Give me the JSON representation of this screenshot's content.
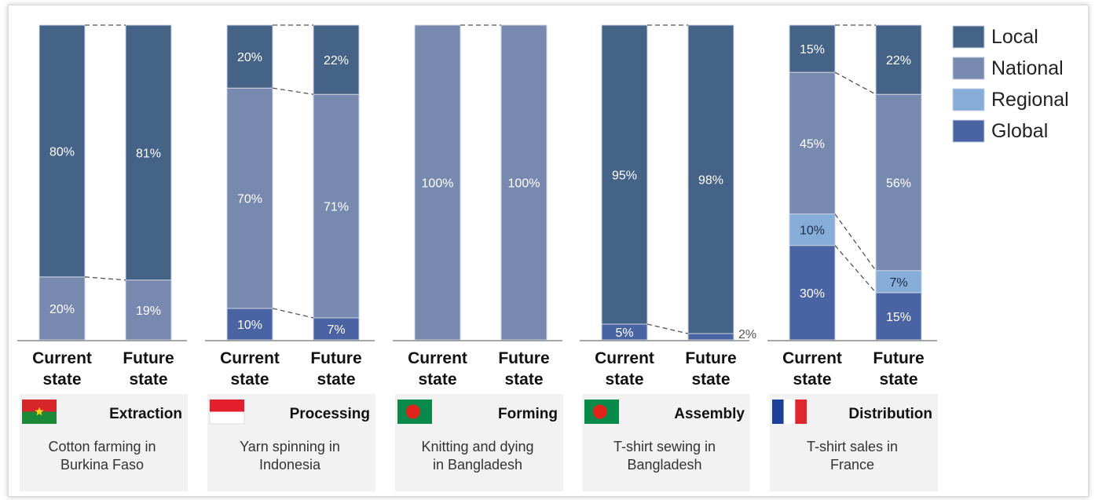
{
  "chart_data": {
    "type": "bar",
    "stacked": true,
    "series_names": [
      "Local",
      "National",
      "Regional",
      "Global"
    ],
    "colors": {
      "Local": "#456287",
      "National": "#7889b0",
      "Regional": "#86acd8",
      "Global": "#4a63a3"
    },
    "legend": {
      "position": "top-right",
      "labels": [
        "Local",
        "National",
        "Regional",
        "Global"
      ]
    },
    "ylim": [
      0,
      100
    ],
    "bar_labels": [
      "Current\nstate",
      "Future\nstate"
    ],
    "panels": [
      {
        "stage": "Extraction",
        "description": "Cotton farming in Burkina Faso",
        "flag": "burkina-faso-flag",
        "current": {
          "Local": 80,
          "National": 20,
          "Regional": 0,
          "Global": 0
        },
        "future": {
          "Local": 81,
          "National": 19,
          "Regional": 0,
          "Global": 0
        },
        "current_labels": {
          "Local": "80%",
          "National": "20%"
        },
        "future_labels": {
          "Local": "81%",
          "National": "19%"
        }
      },
      {
        "stage": "Processing",
        "description": "Yarn spinning in Indonesia",
        "flag": "indonesia-flag",
        "current": {
          "Local": 20,
          "National": 70,
          "Regional": 0,
          "Global": 10
        },
        "future": {
          "Local": 22,
          "National": 71,
          "Regional": 0,
          "Global": 7
        },
        "current_labels": {
          "Local": "20%",
          "National": "70%",
          "Global": "10%"
        },
        "future_labels": {
          "Local": "22%",
          "National": "71%",
          "Global": "7%"
        }
      },
      {
        "stage": "Forming",
        "description": "Knitting and dying in Bangladesh",
        "flag": "bangladesh-flag",
        "current": {
          "Local": 0,
          "National": 100,
          "Regional": 0,
          "Global": 0
        },
        "future": {
          "Local": 0,
          "National": 100,
          "Regional": 0,
          "Global": 0
        },
        "current_labels": {
          "National": "100%"
        },
        "future_labels": {
          "National": "100%"
        }
      },
      {
        "stage": "Assembly",
        "description": "T-shirt sewing in Bangladesh",
        "flag": "bangladesh-flag",
        "current": {
          "Local": 95,
          "National": 0,
          "Regional": 0,
          "Global": 5
        },
        "future": {
          "Local": 98,
          "National": 0,
          "Regional": 0,
          "Global": 2
        },
        "current_labels": {
          "Local": "95%",
          "Global": "5%"
        },
        "future_labels": {
          "Local": "98%",
          "Global": "2%"
        }
      },
      {
        "stage": "Distribution",
        "description": "T-shirt sales in France",
        "flag": "france-flag",
        "current": {
          "Local": 15,
          "National": 45,
          "Regional": 10,
          "Global": 30
        },
        "future": {
          "Local": 22,
          "National": 56,
          "Regional": 7,
          "Global": 15
        },
        "current_labels": {
          "Local": "15%",
          "National": "45%",
          "Regional": "10%",
          "Global": "30%"
        },
        "future_labels": {
          "Local": "22%",
          "National": "56%",
          "Regional": "7%",
          "Global": "15%"
        }
      }
    ]
  }
}
